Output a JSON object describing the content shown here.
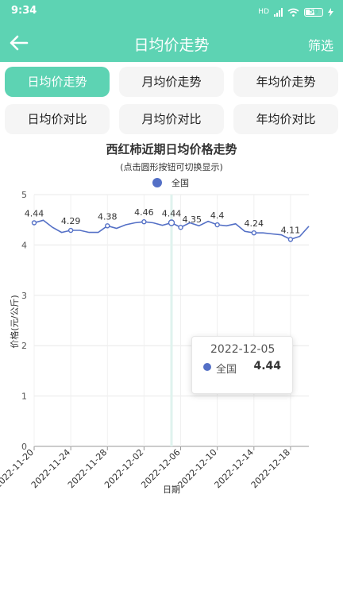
{
  "status_bar": {
    "time": "9:34",
    "network": "HD",
    "battery": "50"
  },
  "app_bar": {
    "title": "日均价走势",
    "filter_label": "筛选"
  },
  "tabs": [
    {
      "label": "日均价走势",
      "active": true
    },
    {
      "label": "月均价走势",
      "active": false
    },
    {
      "label": "年均价走势",
      "active": false
    },
    {
      "label": "日均价对比",
      "active": false
    },
    {
      "label": "月均价对比",
      "active": false
    },
    {
      "label": "年均价对比",
      "active": false
    }
  ],
  "tooltip": {
    "date": "2022-12-05",
    "series": "全国",
    "value": "4.44"
  },
  "colors": {
    "accent": "#5dd3b3",
    "series": "#5470c6"
  },
  "chart_data": {
    "type": "line",
    "title": "西红柿近期日均价格走势",
    "subtitle": "(点击圆形按钮可切换显示)",
    "xlabel": "日期",
    "ylabel": "价格(元/公斤)",
    "ylim": [
      0,
      5
    ],
    "yticks": [
      0,
      1,
      2,
      3,
      4,
      5
    ],
    "grid": true,
    "legend": "top-center",
    "x": [
      "2022-11-20",
      "2022-11-21",
      "2022-11-22",
      "2022-11-23",
      "2022-11-24",
      "2022-11-25",
      "2022-11-26",
      "2022-11-27",
      "2022-11-28",
      "2022-11-29",
      "2022-11-30",
      "2022-12-01",
      "2022-12-02",
      "2022-12-03",
      "2022-12-04",
      "2022-12-05",
      "2022-12-06",
      "2022-12-07",
      "2022-12-08",
      "2022-12-09",
      "2022-12-10",
      "2022-12-11",
      "2022-12-12",
      "2022-12-13",
      "2022-12-14",
      "2022-12-15",
      "2022-12-16",
      "2022-12-17",
      "2022-12-18",
      "2022-12-19",
      "2022-12-20"
    ],
    "x_tick_labels": [
      "2022-11-20",
      "2022-11-24",
      "2022-11-28",
      "2022-12-02",
      "2022-12-06",
      "2022-12-10",
      "2022-12-14",
      "2022-12-18"
    ],
    "series": [
      {
        "name": "全国",
        "values": [
          4.44,
          4.49,
          4.35,
          4.25,
          4.29,
          4.29,
          4.25,
          4.25,
          4.38,
          4.33,
          4.4,
          4.44,
          4.46,
          4.44,
          4.39,
          4.44,
          4.35,
          4.44,
          4.38,
          4.47,
          4.4,
          4.38,
          4.42,
          4.27,
          4.24,
          4.24,
          4.22,
          4.2,
          4.11,
          4.17,
          4.37
        ]
      }
    ],
    "data_labels": [
      {
        "index": 0,
        "text": "4.44"
      },
      {
        "index": 4,
        "text": "4.29"
      },
      {
        "index": 8,
        "text": "4.38"
      },
      {
        "index": 12,
        "text": "4.46"
      },
      {
        "index": 15,
        "text": "4.44"
      },
      {
        "index": 16,
        "text": "4.35"
      },
      {
        "index": 20,
        "text": "4.4"
      },
      {
        "index": 24,
        "text": "4.24"
      },
      {
        "index": 28,
        "text": "4.11"
      }
    ],
    "highlight_index": 15
  }
}
